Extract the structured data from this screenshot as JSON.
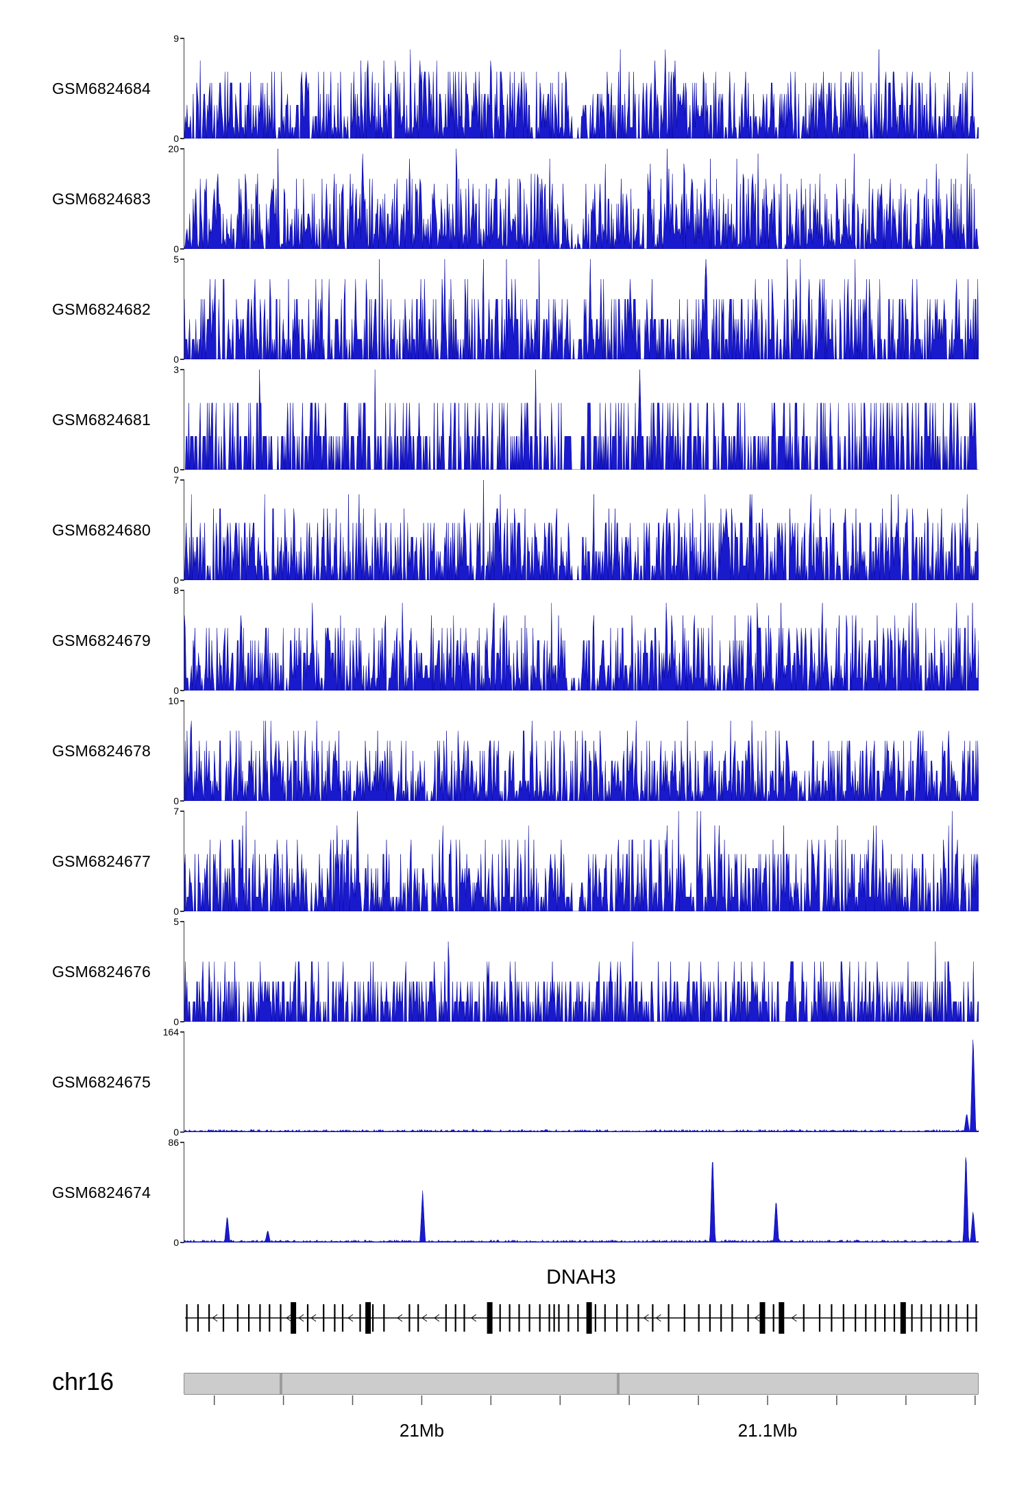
{
  "chart_data": {
    "type": "area",
    "subtype": "genome-browser-coverage-tracks",
    "description": "Read-coverage histogram tracks for 11 GEO samples over the DNAH3 locus on chromosome 16",
    "y_min_label": "0",
    "tracks": [
      {
        "label": "GSM6824684",
        "ymax": 9,
        "profile": "dense",
        "seed": 101,
        "amp": 0.95,
        "dip": 0.493
      },
      {
        "label": "GSM6824683",
        "ymax": 20,
        "profile": "dense",
        "seed": 202,
        "amp": 1.0,
        "dip": 0.493
      },
      {
        "label": "GSM6824682",
        "ymax": 5,
        "profile": "dense",
        "seed": 303,
        "amp": 1.0,
        "dip": 0.493
      },
      {
        "label": "GSM6824681",
        "ymax": 3,
        "profile": "dense",
        "seed": 404,
        "amp": 0.88,
        "dip": 0.493
      },
      {
        "label": "GSM6824680",
        "ymax": 7,
        "profile": "dense",
        "seed": 505,
        "amp": 0.95,
        "dip": 0.493
      },
      {
        "label": "GSM6824679",
        "ymax": 8,
        "profile": "dense",
        "seed": 606,
        "amp": 0.95,
        "dip": 0.493
      },
      {
        "label": "GSM6824678",
        "ymax": 10,
        "profile": "dense",
        "seed": 707,
        "amp": 0.9
      },
      {
        "label": "GSM6824677",
        "ymax": 7,
        "profile": "dense",
        "seed": 808,
        "amp": 0.95,
        "dip": 0.493
      },
      {
        "label": "GSM6824676",
        "ymax": 5,
        "profile": "dense",
        "seed": 909,
        "amp": 0.72
      },
      {
        "label": "GSM6824675",
        "ymax": 164,
        "profile": "sparse",
        "seed": 1010,
        "spikes": [
          {
            "pos": 0.985,
            "h": 0.2
          },
          {
            "pos": 0.993,
            "h": 1.0
          }
        ]
      },
      {
        "label": "GSM6824674",
        "ymax": 86,
        "profile": "sparse",
        "seed": 1111,
        "spikes": [
          {
            "pos": 0.054,
            "h": 0.28
          },
          {
            "pos": 0.105,
            "h": 0.13
          },
          {
            "pos": 0.3,
            "h": 0.52
          },
          {
            "pos": 0.665,
            "h": 0.92
          },
          {
            "pos": 0.745,
            "h": 0.45
          },
          {
            "pos": 0.984,
            "h": 0.95
          },
          {
            "pos": 0.993,
            "h": 0.33
          }
        ]
      }
    ],
    "gene_track": {
      "name": "DNAH3",
      "strand_direction": "left",
      "exons": [
        0.004,
        0.018,
        0.032,
        0.05,
        0.068,
        0.082,
        0.096,
        0.108,
        0.122,
        0.138,
        0.156,
        0.176,
        0.19,
        0.2,
        0.222,
        0.232,
        0.238,
        0.252,
        0.284,
        0.295,
        0.33,
        0.342,
        0.353,
        0.385,
        0.398,
        0.41,
        0.422,
        0.435,
        0.448,
        0.46,
        0.466,
        0.472,
        0.484,
        0.496,
        0.51,
        0.518,
        0.53,
        0.545,
        0.558,
        0.572,
        0.59,
        0.61,
        0.63,
        0.648,
        0.662,
        0.676,
        0.69,
        0.71,
        0.728,
        0.742,
        0.752,
        0.78,
        0.8,
        0.815,
        0.83,
        0.845,
        0.858,
        0.87,
        0.882,
        0.894,
        0.905,
        0.916,
        0.928,
        0.94,
        0.952,
        0.962,
        0.972,
        0.986,
        0.997
      ],
      "thick_exons": [
        0.138,
        0.232,
        0.385,
        0.51,
        0.728,
        0.752,
        0.905
      ]
    },
    "ideogram": {
      "label": "chr16",
      "bands": [
        0.12,
        0.545
      ]
    },
    "x_axis": {
      "tick_start": 0.0385,
      "tick_step": 0.087,
      "tick_count": 12,
      "labeled_ticks": [
        {
          "index": 3,
          "label": "21Mb"
        },
        {
          "index": 8,
          "label": "21.1Mb"
        }
      ]
    },
    "colors": {
      "signal": "#1a1acd",
      "signal_edge": "#00009a",
      "axis": "#3a3a3a",
      "gene": "#000000",
      "ideogram_fill": "#cccccc",
      "ideogram_border": "#8a8a8a",
      "text": "#000000"
    }
  }
}
